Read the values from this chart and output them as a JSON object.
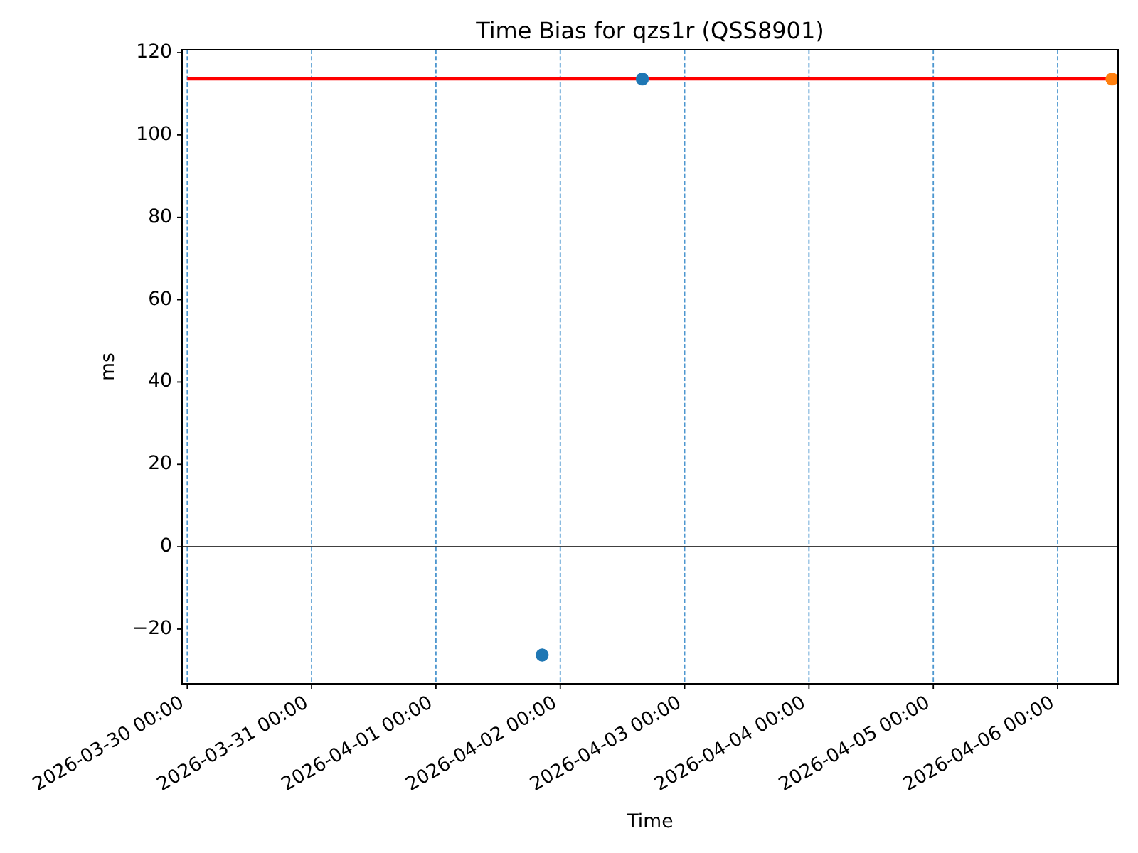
{
  "chart_data": {
    "type": "scatter",
    "title": "Time Bias for qzs1r (QSS8901)",
    "xlabel": "Time",
    "ylabel": "ms",
    "xlim": [
      "2026-03-29T23:00",
      "2026-04-06T11:40"
    ],
    "xticks": [
      {
        "value": "2026-03-30T00:00",
        "label": "2026-03-30 00:00"
      },
      {
        "value": "2026-03-31T00:00",
        "label": "2026-03-31 00:00"
      },
      {
        "value": "2026-04-01T00:00",
        "label": "2026-04-01 00:00"
      },
      {
        "value": "2026-04-02T00:00",
        "label": "2026-04-02 00:00"
      },
      {
        "value": "2026-04-03T00:00",
        "label": "2026-04-03 00:00"
      },
      {
        "value": "2026-04-04T00:00",
        "label": "2026-04-04 00:00"
      },
      {
        "value": "2026-04-05T00:00",
        "label": "2026-04-05 00:00"
      },
      {
        "value": "2026-04-06T00:00",
        "label": "2026-04-06 00:00"
      }
    ],
    "ylim": [
      -33.3,
      120.7
    ],
    "yticks": [
      {
        "value": -20,
        "label": "−20"
      },
      0,
      20,
      40,
      60,
      80,
      100,
      120
    ],
    "marker": "circle",
    "series": [
      {
        "type": "line",
        "color": "#ff0000",
        "marker": "none",
        "x": [
          "2026-03-30T00:00",
          "2026-04-06T11:40"
        ],
        "values": [
          113.6,
          113.6
        ]
      },
      {
        "color": "#1f77b4",
        "x": [
          "2026-04-01T20:30",
          "2026-04-02T15:50"
        ],
        "values": [
          -26.3,
          113.6
        ]
      },
      {
        "color": "#ff7f0e",
        "x": [
          "2026-04-06T10:30"
        ],
        "values": [
          113.6
        ]
      }
    ],
    "ref_lines": [
      {
        "axis": "y",
        "value": 0,
        "color": "#000000",
        "line_style": "solid"
      },
      {
        "axis": "x",
        "value": "2026-03-30T00:00",
        "color": "#4c96cf",
        "line_style": "dashed"
      },
      {
        "axis": "x",
        "value": "2026-03-31T00:00",
        "color": "#4c96cf",
        "line_style": "dashed"
      },
      {
        "axis": "x",
        "value": "2026-04-01T00:00",
        "color": "#4c96cf",
        "line_style": "dashed"
      },
      {
        "axis": "x",
        "value": "2026-04-02T00:00",
        "color": "#4c96cf",
        "line_style": "dashed"
      },
      {
        "axis": "x",
        "value": "2026-04-03T00:00",
        "color": "#4c96cf",
        "line_style": "dashed"
      },
      {
        "axis": "x",
        "value": "2026-04-04T00:00",
        "color": "#4c96cf",
        "line_style": "dashed"
      },
      {
        "axis": "x",
        "value": "2026-04-05T00:00",
        "color": "#4c96cf",
        "line_style": "dashed"
      },
      {
        "axis": "x",
        "value": "2026-04-06T00:00",
        "color": "#4c96cf",
        "line_style": "dashed"
      }
    ]
  }
}
